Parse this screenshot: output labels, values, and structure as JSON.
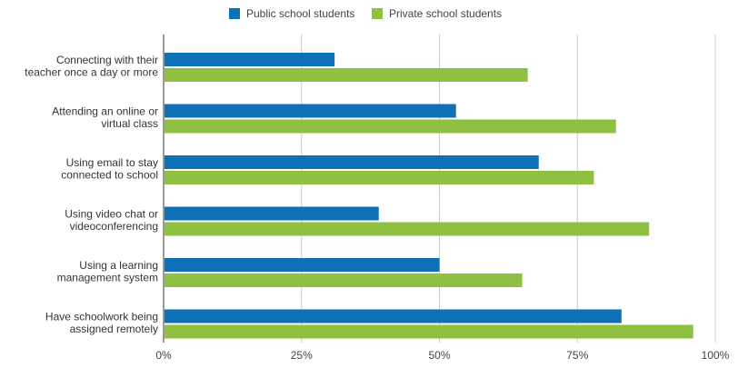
{
  "chart_data": {
    "type": "bar",
    "orientation": "horizontal",
    "title": "",
    "xlabel": "",
    "ylabel": "",
    "categories": [
      [
        "Connecting with their",
        "teacher once a day or more"
      ],
      [
        "Attending an online or",
        "virtual class"
      ],
      [
        "Using email to stay",
        "connected to school"
      ],
      [
        "Using video chat or",
        "videoconferencing"
      ],
      [
        "Using a learning",
        "management system"
      ],
      [
        "Have schoolwork being",
        "assigned remotely"
      ]
    ],
    "series": [
      {
        "name": "Public school students",
        "color": "#0e70b7",
        "values": [
          31,
          53,
          68,
          39,
          50,
          83
        ]
      },
      {
        "name": "Private school students",
        "color": "#8fc042",
        "values": [
          66,
          82,
          78,
          88,
          65,
          96
        ]
      }
    ],
    "xlim": [
      0,
      100
    ],
    "x_ticks": [
      0,
      25,
      50,
      75,
      100
    ],
    "x_tick_labels": [
      "0%",
      "25%",
      "50%",
      "75%",
      "100%"
    ],
    "grid": true,
    "legend_position": "top-center"
  }
}
